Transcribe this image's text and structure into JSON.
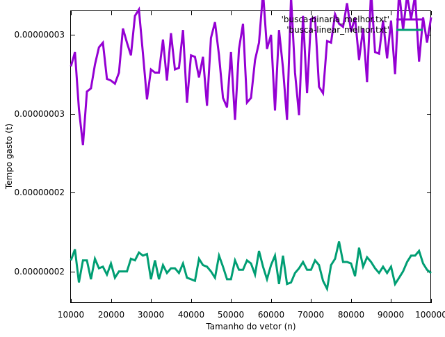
{
  "chart_data": {
    "type": "line",
    "title": "",
    "xlabel": "Tamanho do vetor (n)",
    "ylabel": "Tempo gasto (t)",
    "xlim": [
      10000,
      100000
    ],
    "ylim": [
      1.55e-08,
      3.4e-08
    ],
    "x_ticks": [
      10000,
      20000,
      30000,
      40000,
      50000,
      60000,
      70000,
      80000,
      90000,
      100000
    ],
    "x_tick_labels": [
      "10000",
      "20000",
      "30000",
      "40000",
      "50000",
      "60000",
      "70000",
      "80000",
      "90000",
      "100000"
    ],
    "y_ticks": [
      1.75e-08,
      2.25e-08,
      2.75e-08,
      3.25e-08
    ],
    "y_tick_labels": [
      "0.00000002",
      "0.00000002",
      "0.00000003",
      "0.00000003"
    ],
    "grid": false,
    "legend_position": "top-right",
    "series": [
      {
        "name": "'busca-binaria_melhor.txt'",
        "color": "#9400d3",
        "x": [
          10000,
          11000,
          12000,
          13000,
          14000,
          15000,
          16000,
          17000,
          18000,
          19000,
          20000,
          21000,
          22000,
          23000,
          24000,
          25000,
          26000,
          27000,
          28000,
          29000,
          30000,
          31000,
          32000,
          33000,
          34000,
          35000,
          36000,
          37000,
          38000,
          39000,
          40000,
          41000,
          42000,
          43000,
          44000,
          45000,
          46000,
          47000,
          48000,
          49000,
          50000,
          51000,
          52000,
          53000,
          54000,
          55000,
          56000,
          57000,
          58000,
          59000,
          60000,
          61000,
          62000,
          63000,
          64000,
          65000,
          66000,
          67000,
          68000,
          69000,
          70000,
          71000,
          72000,
          73000,
          74000,
          75000,
          76000,
          77000,
          78000,
          79000,
          80000,
          81000,
          82000,
          83000,
          84000,
          85000,
          86000,
          87000,
          88000,
          89000,
          90000,
          91000,
          92000,
          93000,
          94000,
          95000,
          96000,
          97000,
          98000,
          99000,
          100000
        ],
        "values": [
          3.05e-08,
          3.14e-08,
          2.78e-08,
          2.55e-08,
          2.89e-08,
          2.91e-08,
          3.06e-08,
          3.17e-08,
          3.2e-08,
          2.97e-08,
          2.96e-08,
          2.94e-08,
          3.01e-08,
          3.29e-08,
          3.2e-08,
          3.12e-08,
          3.37e-08,
          3.41e-08,
          3.13e-08,
          2.84e-08,
          3.03e-08,
          3.01e-08,
          3.01e-08,
          3.22e-08,
          2.96e-08,
          3.26e-08,
          3.03e-08,
          3.04e-08,
          3.28e-08,
          2.82e-08,
          3.12e-08,
          3.11e-08,
          2.98e-08,
          3.11e-08,
          2.8e-08,
          3.23e-08,
          3.33e-08,
          3.12e-08,
          2.85e-08,
          2.79e-08,
          3.14e-08,
          2.71e-08,
          3.16e-08,
          3.32e-08,
          2.82e-08,
          2.85e-08,
          3.09e-08,
          3.2e-08,
          3.52e-08,
          3.16e-08,
          3.25e-08,
          2.77e-08,
          3.28e-08,
          3.04e-08,
          2.71e-08,
          3.49e-08,
          3.01e-08,
          2.74e-08,
          3.37e-08,
          2.88e-08,
          3.35e-08,
          3.36e-08,
          2.92e-08,
          2.88e-08,
          3.21e-08,
          3.2e-08,
          3.38e-08,
          3.32e-08,
          3.3e-08,
          3.45e-08,
          3.27e-08,
          3.36e-08,
          3.09e-08,
          3.29e-08,
          2.95e-08,
          3.53e-08,
          3.14e-08,
          3.13e-08,
          3.34e-08,
          3.1e-08,
          3.34e-08,
          3e-08,
          3.53e-08,
          3.28e-08,
          3.5e-08,
          3.35e-08,
          3.5e-08,
          3.08e-08,
          3.36e-08,
          3.2e-08,
          3.36e-08
        ]
      },
      {
        "name": "'busca-linear_melhor.txt'",
        "color": "#009e73",
        "x": [
          10000,
          11000,
          12000,
          13000,
          14000,
          15000,
          16000,
          17000,
          18000,
          19000,
          20000,
          21000,
          22000,
          23000,
          24000,
          25000,
          26000,
          27000,
          28000,
          29000,
          30000,
          31000,
          32000,
          33000,
          34000,
          35000,
          36000,
          37000,
          38000,
          39000,
          40000,
          41000,
          42000,
          43000,
          44000,
          45000,
          46000,
          47000,
          48000,
          49000,
          50000,
          51000,
          52000,
          53000,
          54000,
          55000,
          56000,
          57000,
          58000,
          59000,
          60000,
          61000,
          62000,
          63000,
          64000,
          65000,
          66000,
          67000,
          68000,
          69000,
          70000,
          71000,
          72000,
          73000,
          74000,
          75000,
          76000,
          77000,
          78000,
          79000,
          80000,
          81000,
          82000,
          83000,
          84000,
          85000,
          86000,
          87000,
          88000,
          89000,
          90000,
          91000,
          92000,
          93000,
          94000,
          95000,
          96000,
          97000,
          98000,
          99000,
          100000
        ],
        "values": [
          1.82e-08,
          1.89e-08,
          1.68e-08,
          1.82e-08,
          1.82e-08,
          1.7e-08,
          1.83e-08,
          1.77e-08,
          1.78e-08,
          1.73e-08,
          1.8e-08,
          1.71e-08,
          1.75e-08,
          1.75e-08,
          1.75e-08,
          1.83e-08,
          1.82e-08,
          1.87e-08,
          1.85e-08,
          1.86e-08,
          1.7e-08,
          1.82e-08,
          1.7e-08,
          1.79e-08,
          1.74e-08,
          1.77e-08,
          1.77e-08,
          1.74e-08,
          1.8e-08,
          1.71e-08,
          1.7e-08,
          1.69e-08,
          1.83e-08,
          1.79e-08,
          1.78e-08,
          1.75e-08,
          1.71e-08,
          1.85e-08,
          1.78e-08,
          1.7e-08,
          1.7e-08,
          1.82e-08,
          1.76e-08,
          1.76e-08,
          1.82e-08,
          1.8e-08,
          1.73e-08,
          1.88e-08,
          1.78e-08,
          1.7e-08,
          1.79e-08,
          1.85e-08,
          1.67e-08,
          1.85e-08,
          1.67e-08,
          1.68e-08,
          1.74e-08,
          1.77e-08,
          1.81e-08,
          1.76e-08,
          1.76e-08,
          1.82e-08,
          1.79e-08,
          1.69e-08,
          1.64e-08,
          1.79e-08,
          1.83e-08,
          1.94e-08,
          1.81e-08,
          1.81e-08,
          1.8e-08,
          1.72e-08,
          1.9e-08,
          1.78e-08,
          1.84e-08,
          1.81e-08,
          1.77e-08,
          1.74e-08,
          1.78e-08,
          1.74e-08,
          1.78e-08,
          1.67e-08,
          1.71e-08,
          1.75e-08,
          1.81e-08,
          1.85e-08,
          1.85e-08,
          1.88e-08,
          1.8e-08,
          1.76e-08,
          1.74e-08
        ]
      }
    ]
  }
}
